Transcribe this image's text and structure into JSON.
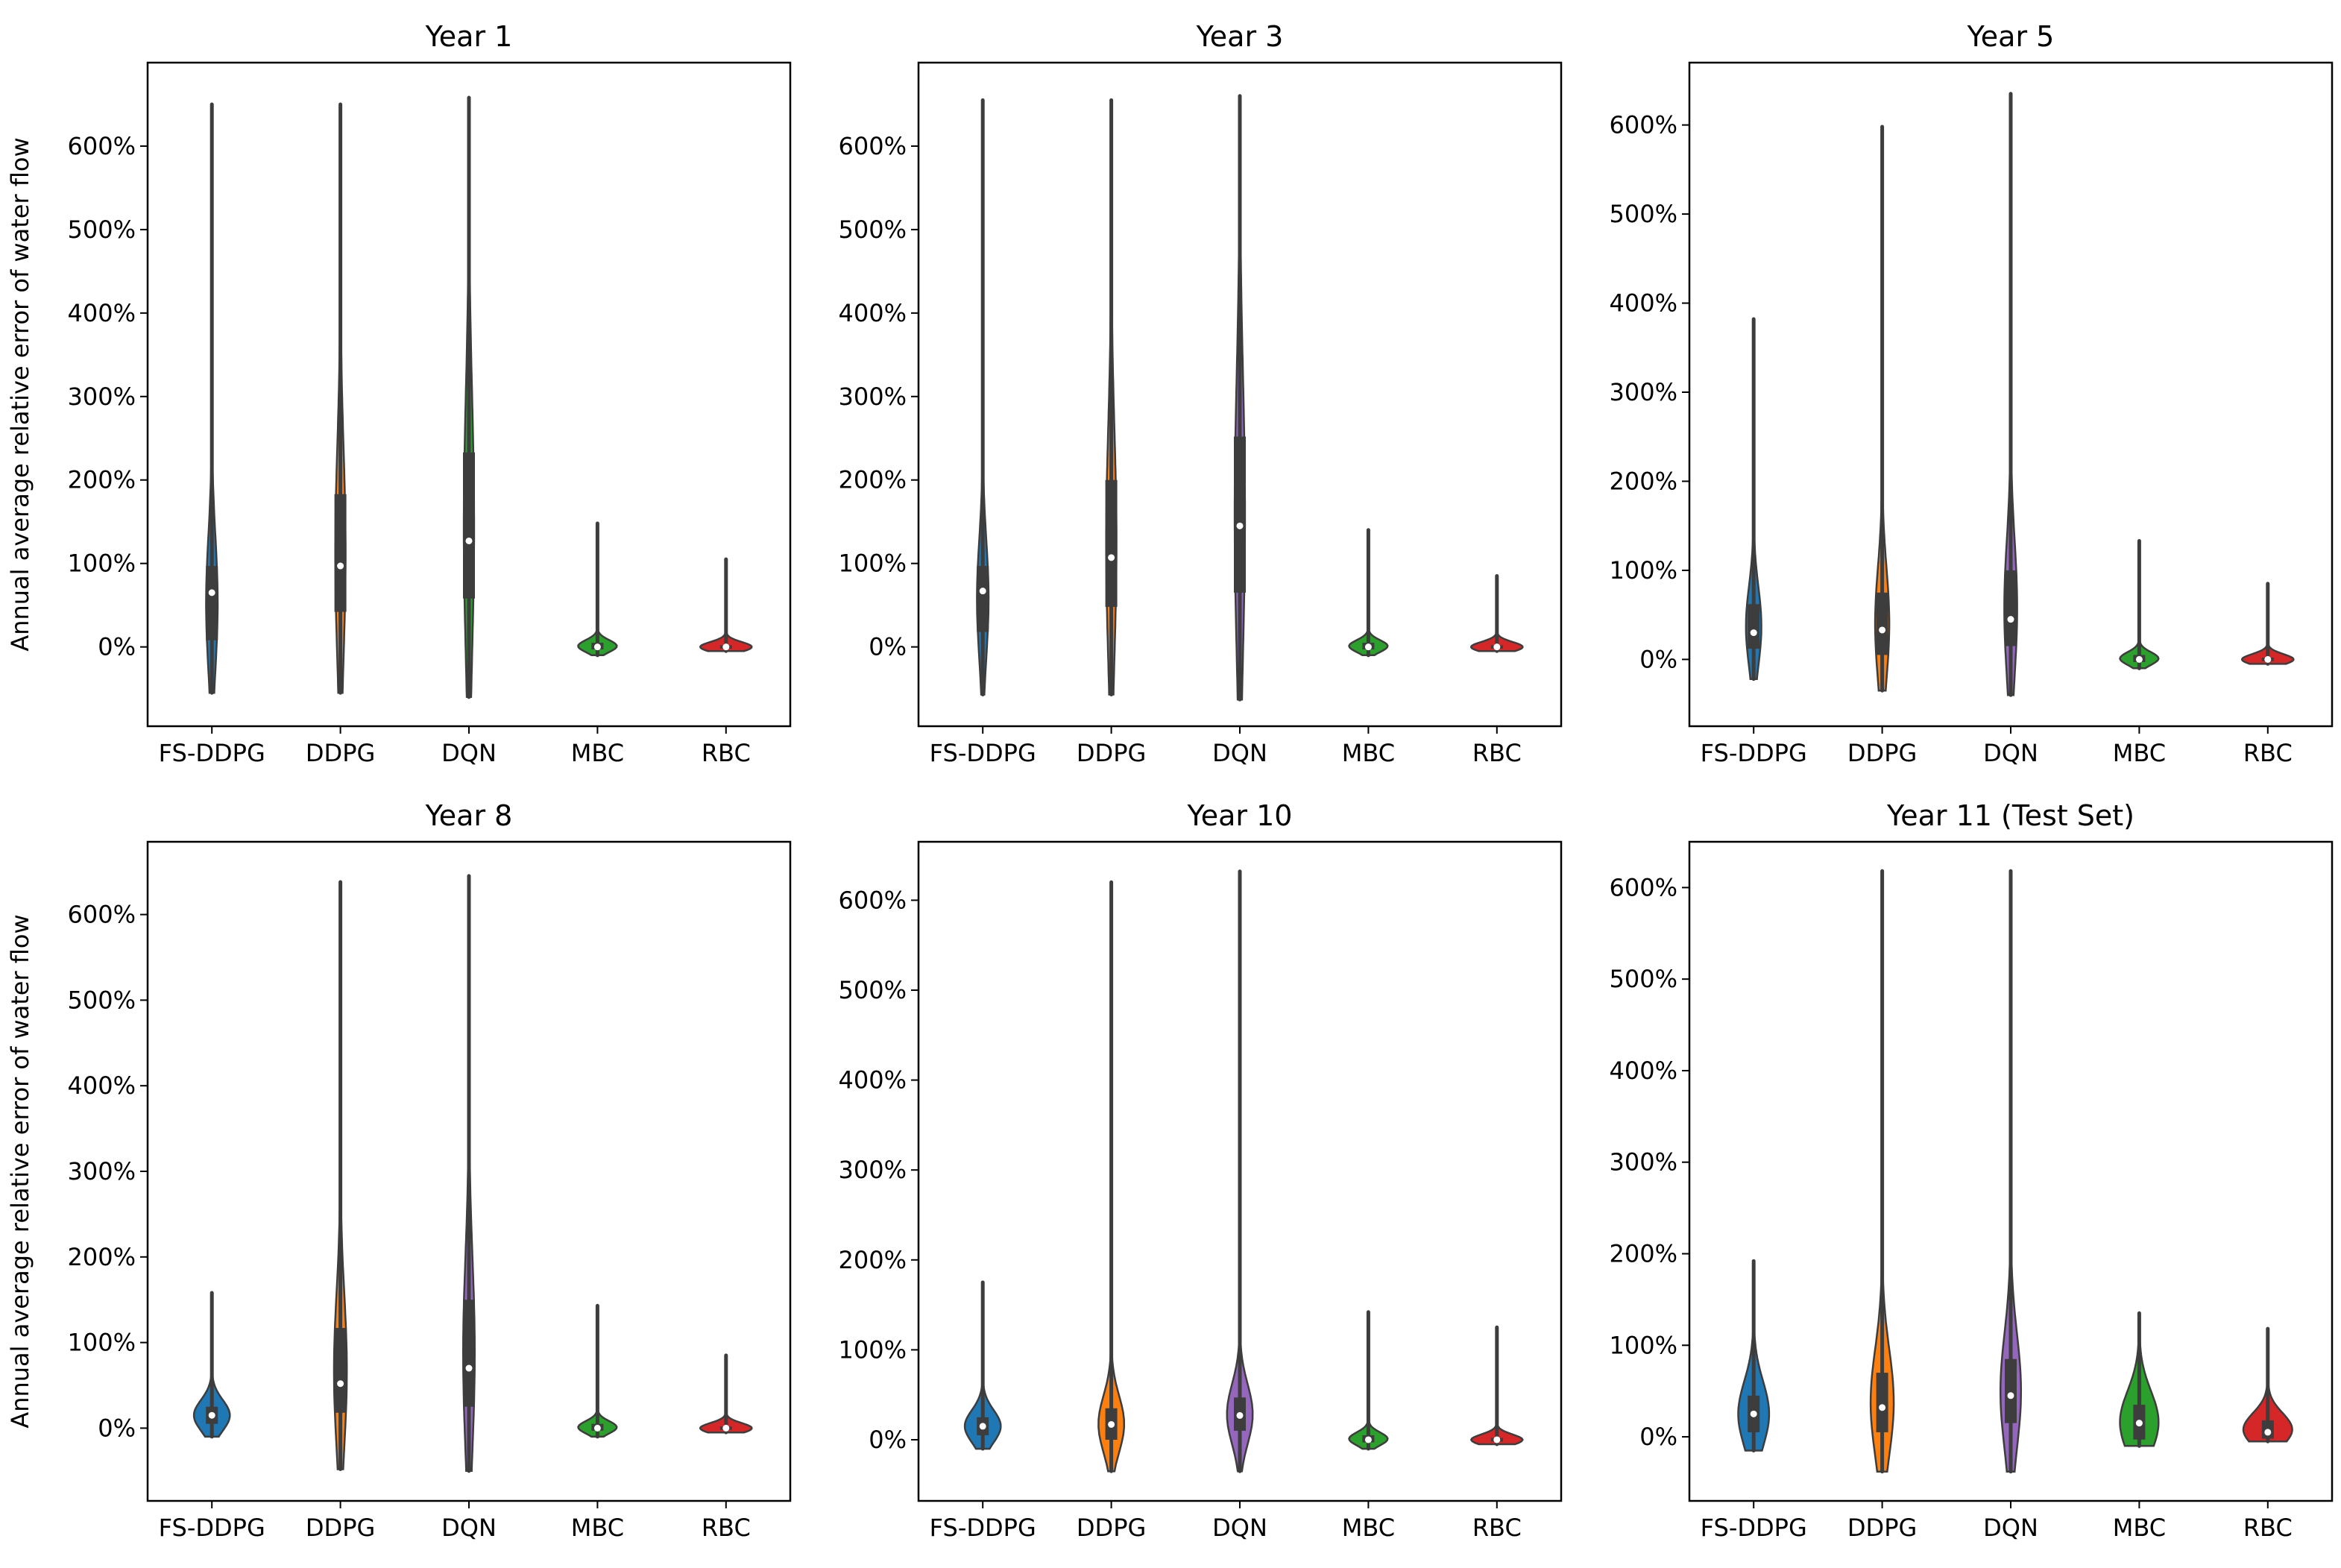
{
  "figure": {
    "ylabel": "Annual average relative error of water flow"
  },
  "chart_data": [
    {
      "type": "violin",
      "title": "Year 1",
      "categories": [
        "FS-DDPG",
        "DDPG",
        "DQN",
        "MBC",
        "RBC"
      ],
      "yticks": [
        "0%",
        "100%",
        "200%",
        "300%",
        "400%",
        "500%",
        "600%"
      ],
      "ylim": [
        -95,
        700
      ],
      "series": [
        {
          "name": "FS-DDPG",
          "color": "#1f77b4",
          "min": -55,
          "q1": 8,
          "median": 65,
          "q3": 97,
          "max": 650,
          "width": 0.09
        },
        {
          "name": "DDPG",
          "color": "#ff7f0e",
          "min": -55,
          "q1": 42,
          "median": 97,
          "q3": 183,
          "max": 650,
          "width": 0.08
        },
        {
          "name": "DQN",
          "color": "#2ca02c",
          "min": -60,
          "q1": 58,
          "median": 127,
          "q3": 233,
          "max": 658,
          "width": 0.08
        },
        {
          "name": "MBC",
          "color": "#2ca02c",
          "min": -10,
          "q1": -3,
          "median": 0,
          "q3": 5,
          "max": 148,
          "width": 0.3
        },
        {
          "name": "RBC",
          "color": "#d62728",
          "min": -5,
          "q1": -2,
          "median": 0,
          "q3": 2,
          "max": 105,
          "width": 0.4
        }
      ]
    },
    {
      "type": "violin",
      "title": "Year 3",
      "categories": [
        "FS-DDPG",
        "DDPG",
        "DQN",
        "MBC",
        "RBC"
      ],
      "yticks": [
        "0%",
        "100%",
        "200%",
        "300%",
        "400%",
        "500%",
        "600%"
      ],
      "ylim": [
        -95,
        700
      ],
      "series": [
        {
          "name": "FS-DDPG",
          "color": "#1f77b4",
          "min": -57,
          "q1": 18,
          "median": 67,
          "q3": 97,
          "max": 655,
          "width": 0.09
        },
        {
          "name": "DDPG",
          "color": "#ff7f0e",
          "min": -57,
          "q1": 48,
          "median": 107,
          "q3": 200,
          "max": 655,
          "width": 0.08
        },
        {
          "name": "DQN",
          "color": "#9467bd",
          "min": -63,
          "q1": 65,
          "median": 145,
          "q3": 252,
          "max": 660,
          "width": 0.08
        },
        {
          "name": "MBC",
          "color": "#2ca02c",
          "min": -10,
          "q1": -3,
          "median": 0,
          "q3": 5,
          "max": 140,
          "width": 0.3
        },
        {
          "name": "RBC",
          "color": "#d62728",
          "min": -5,
          "q1": -2,
          "median": 0,
          "q3": 2,
          "max": 85,
          "width": 0.4
        }
      ]
    },
    {
      "type": "violin",
      "title": "Year 5",
      "categories": [
        "FS-DDPG",
        "DDPG",
        "DQN",
        "MBC",
        "RBC"
      ],
      "yticks": [
        "0%",
        "100%",
        "200%",
        "300%",
        "400%",
        "500%",
        "600%"
      ],
      "ylim": [
        -75,
        670
      ],
      "series": [
        {
          "name": "FS-DDPG",
          "color": "#1f77b4",
          "min": -22,
          "q1": 12,
          "median": 30,
          "q3": 62,
          "max": 382,
          "width": 0.12
        },
        {
          "name": "DDPG",
          "color": "#ff7f0e",
          "min": -35,
          "q1": 5,
          "median": 33,
          "q3": 75,
          "max": 598,
          "width": 0.11
        },
        {
          "name": "DQN",
          "color": "#9467bd",
          "min": -40,
          "q1": 15,
          "median": 45,
          "q3": 100,
          "max": 635,
          "width": 0.1
        },
        {
          "name": "MBC",
          "color": "#2ca02c",
          "min": -10,
          "q1": -3,
          "median": 0,
          "q3": 5,
          "max": 133,
          "width": 0.3
        },
        {
          "name": "RBC",
          "color": "#d62728",
          "min": -5,
          "q1": -2,
          "median": 0,
          "q3": 2,
          "max": 85,
          "width": 0.4
        }
      ]
    },
    {
      "type": "violin",
      "title": "Year 8",
      "categories": [
        "FS-DDPG",
        "DDPG",
        "DQN",
        "MBC",
        "RBC"
      ],
      "yticks": [
        "0%",
        "100%",
        "200%",
        "300%",
        "400%",
        "500%",
        "600%"
      ],
      "ylim": [
        -85,
        685
      ],
      "series": [
        {
          "name": "FS-DDPG",
          "color": "#1f77b4",
          "min": -10,
          "q1": 5,
          "median": 15,
          "q3": 25,
          "max": 158,
          "width": 0.28
        },
        {
          "name": "DDPG",
          "color": "#ff7f0e",
          "min": -48,
          "q1": 18,
          "median": 52,
          "q3": 117,
          "max": 638,
          "width": 0.1
        },
        {
          "name": "DQN",
          "color": "#9467bd",
          "min": -50,
          "q1": 25,
          "median": 70,
          "q3": 150,
          "max": 645,
          "width": 0.09
        },
        {
          "name": "MBC",
          "color": "#2ca02c",
          "min": -10,
          "q1": -3,
          "median": 0,
          "q3": 5,
          "max": 143,
          "width": 0.3
        },
        {
          "name": "RBC",
          "color": "#d62728",
          "min": -5,
          "q1": -2,
          "median": 0,
          "q3": 2,
          "max": 85,
          "width": 0.4
        }
      ]
    },
    {
      "type": "violin",
      "title": "Year 10",
      "categories": [
        "FS-DDPG",
        "DDPG",
        "DQN",
        "MBC",
        "RBC"
      ],
      "yticks": [
        "0%",
        "100%",
        "200%",
        "300%",
        "400%",
        "500%",
        "600%"
      ],
      "ylim": [
        -68,
        665
      ],
      "series": [
        {
          "name": "FS-DDPG",
          "color": "#1f77b4",
          "min": -10,
          "q1": 5,
          "median": 15,
          "q3": 25,
          "max": 175,
          "width": 0.28
        },
        {
          "name": "DDPG",
          "color": "#ff7f0e",
          "min": -35,
          "q1": 0,
          "median": 17,
          "q3": 35,
          "max": 620,
          "width": 0.2
        },
        {
          "name": "DQN",
          "color": "#9467bd",
          "min": -35,
          "q1": 10,
          "median": 27,
          "q3": 47,
          "max": 632,
          "width": 0.2
        },
        {
          "name": "MBC",
          "color": "#2ca02c",
          "min": -10,
          "q1": -3,
          "median": 0,
          "q3": 5,
          "max": 142,
          "width": 0.3
        },
        {
          "name": "RBC",
          "color": "#d62728",
          "min": -5,
          "q1": -2,
          "median": 0,
          "q3": 2,
          "max": 125,
          "width": 0.4
        }
      ]
    },
    {
      "type": "violin",
      "title": "Year 11 (Test Set)",
      "categories": [
        "FS-DDPG",
        "DDPG",
        "DQN",
        "MBC",
        "RBC"
      ],
      "yticks": [
        "0%",
        "100%",
        "200%",
        "300%",
        "400%",
        "500%",
        "600%"
      ],
      "ylim": [
        -70,
        650
      ],
      "series": [
        {
          "name": "FS-DDPG",
          "color": "#1f77b4",
          "min": -15,
          "q1": 5,
          "median": 25,
          "q3": 45,
          "max": 192,
          "width": 0.24
        },
        {
          "name": "DDPG",
          "color": "#ff7f0e",
          "min": -38,
          "q1": 5,
          "median": 32,
          "q3": 70,
          "max": 618,
          "width": 0.18
        },
        {
          "name": "DQN",
          "color": "#9467bd",
          "min": -38,
          "q1": 15,
          "median": 45,
          "q3": 85,
          "max": 618,
          "width": 0.16
        },
        {
          "name": "MBC",
          "color": "#2ca02c",
          "min": -10,
          "q1": -3,
          "median": 15,
          "q3": 35,
          "max": 135,
          "width": 0.3
        },
        {
          "name": "RBC",
          "color": "#d62728",
          "min": -5,
          "q1": -2,
          "median": 5,
          "q3": 18,
          "max": 118,
          "width": 0.38
        }
      ]
    }
  ]
}
